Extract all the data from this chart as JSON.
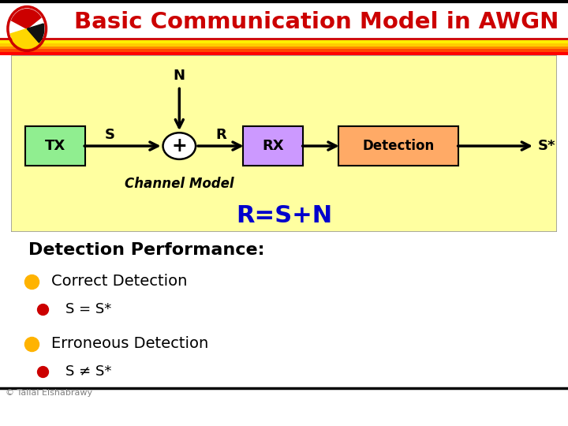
{
  "title": "Basic Communication Model in AWGN",
  "title_color": "#CC0000",
  "diagram_bg": "#FFFFA0",
  "tx_box_color": "#90EE90",
  "rx_box_color": "#CC99FF",
  "det_box_color": "#FFAA66",
  "equation": "R=S+N",
  "equation_color": "#0000CC",
  "channel_label": "Channel Model",
  "bottom_text": "Detection Performance:",
  "bullet1_main": "Correct Detection",
  "bullet1_sub": "S = S*",
  "bullet2_main": "Erroneous Detection",
  "bullet2_neq": "S ≠ S*",
  "footer": "© Tallal Elshabrawy",
  "yellow_bullet_color": "#FFB300",
  "red_bullet_color": "#CC0000"
}
